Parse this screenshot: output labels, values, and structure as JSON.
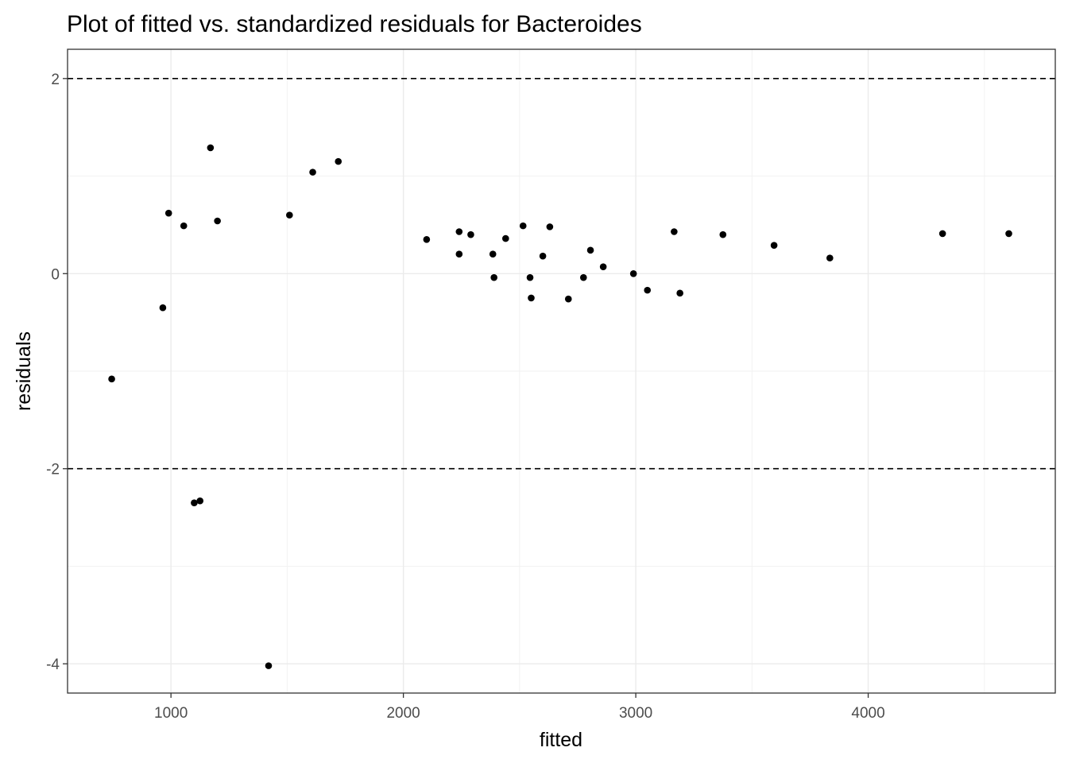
{
  "chart_data": {
    "type": "scatter",
    "title": "Plot of fitted vs. standardized residuals for Bacteroides",
    "xlabel": "fitted",
    "ylabel": "residuals",
    "xlim": [
      555,
      4805
    ],
    "ylim": [
      -4.3,
      2.3
    ],
    "x_ticks": [
      1000,
      2000,
      3000,
      4000
    ],
    "y_ticks": [
      -4,
      -2,
      0,
      2
    ],
    "x_tick_labels": [
      "1000",
      "2000",
      "3000",
      "4000"
    ],
    "y_tick_labels": [
      "-4",
      "-2",
      "0",
      "2"
    ],
    "reference_lines_y": [
      2,
      -2
    ],
    "grid": true,
    "points": [
      {
        "x": 745,
        "y": -1.08
      },
      {
        "x": 965,
        "y": -0.35
      },
      {
        "x": 990,
        "y": 0.62
      },
      {
        "x": 1055,
        "y": 0.49
      },
      {
        "x": 1100,
        "y": -2.35
      },
      {
        "x": 1125,
        "y": -2.33
      },
      {
        "x": 1170,
        "y": 1.29
      },
      {
        "x": 1200,
        "y": 0.54
      },
      {
        "x": 1420,
        "y": -4.02
      },
      {
        "x": 1510,
        "y": 0.6
      },
      {
        "x": 1610,
        "y": 1.04
      },
      {
        "x": 1720,
        "y": 1.15
      },
      {
        "x": 2100,
        "y": 0.35
      },
      {
        "x": 2240,
        "y": 0.43
      },
      {
        "x": 2240,
        "y": 0.2
      },
      {
        "x": 2290,
        "y": 0.4
      },
      {
        "x": 2385,
        "y": 0.2
      },
      {
        "x": 2390,
        "y": -0.04
      },
      {
        "x": 2440,
        "y": 0.36
      },
      {
        "x": 2515,
        "y": 0.49
      },
      {
        "x": 2545,
        "y": -0.04
      },
      {
        "x": 2550,
        "y": -0.25
      },
      {
        "x": 2600,
        "y": 0.18
      },
      {
        "x": 2630,
        "y": 0.48
      },
      {
        "x": 2710,
        "y": -0.26
      },
      {
        "x": 2775,
        "y": -0.04
      },
      {
        "x": 2805,
        "y": 0.24
      },
      {
        "x": 2860,
        "y": 0.07
      },
      {
        "x": 2990,
        "y": 0.0
      },
      {
        "x": 3050,
        "y": -0.17
      },
      {
        "x": 3165,
        "y": 0.43
      },
      {
        "x": 3190,
        "y": -0.2
      },
      {
        "x": 3375,
        "y": 0.4
      },
      {
        "x": 3595,
        "y": 0.29
      },
      {
        "x": 3835,
        "y": 0.16
      },
      {
        "x": 4320,
        "y": 0.41
      },
      {
        "x": 4605,
        "y": 0.41
      }
    ]
  }
}
